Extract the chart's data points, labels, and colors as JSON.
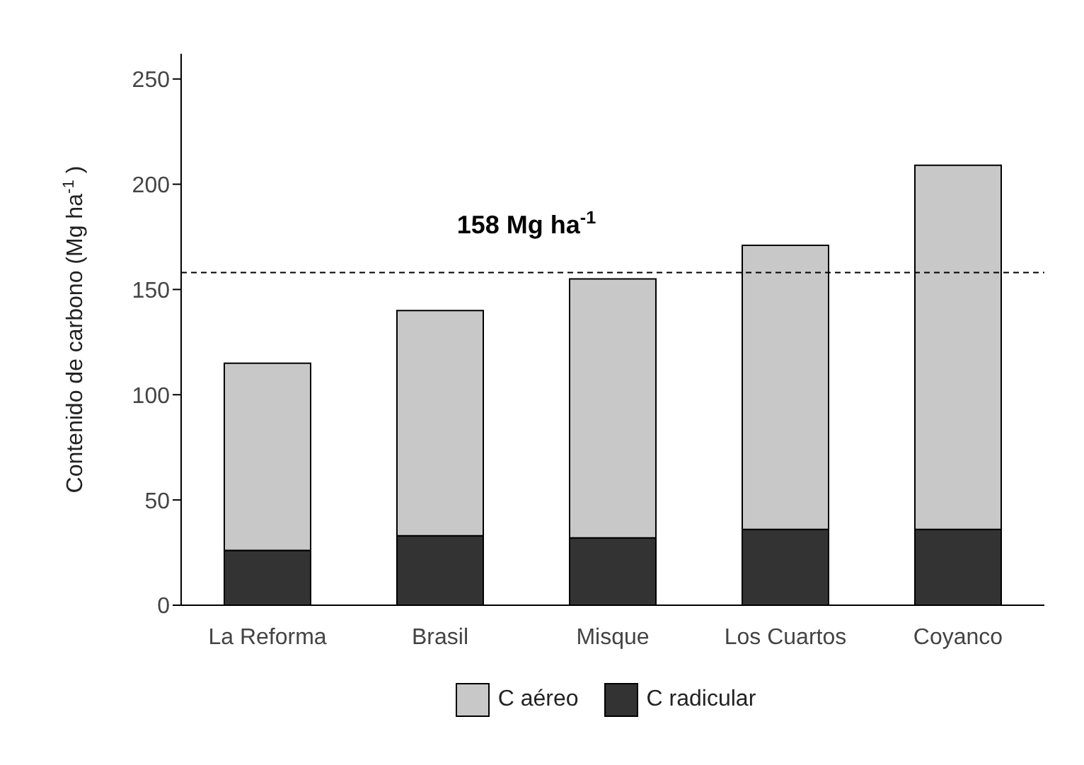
{
  "chart_data": {
    "type": "bar",
    "stacked": true,
    "ylabel": "Contenido de carbono (Mg ha$^{-1}$ )",
    "categories": [
      "La Reforma",
      "Brasil",
      "Misque",
      "Los Cuartos",
      "Coyanco"
    ],
    "series": [
      {
        "name": "C radicular",
        "color": "#333333",
        "values": [
          26,
          33,
          32,
          36,
          36
        ]
      },
      {
        "name": "C aéreo",
        "color": "#c8c8c8",
        "values": [
          89,
          107,
          123,
          135,
          173
        ]
      }
    ],
    "ylim": [
      0,
      262
    ],
    "yticks": [
      0,
      50,
      100,
      150,
      200,
      250
    ],
    "grid": false,
    "legend": "bottom",
    "ref_lines": [
      {
        "axis": "y",
        "value": 158,
        "label": "158 Mg ha$^{-1}$",
        "line_style": "dashed",
        "color": "#000000"
      }
    ]
  }
}
